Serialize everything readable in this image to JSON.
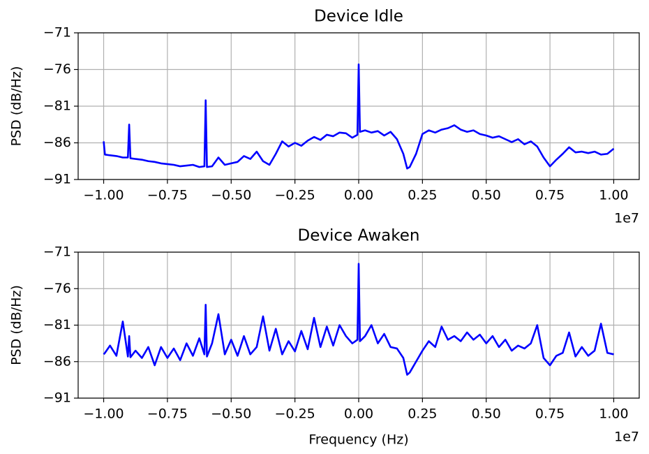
{
  "chart_data": [
    {
      "type": "line",
      "title": "Device Idle",
      "ylabel": "PSD (dB/Hz)",
      "x_offset_label": "1e7",
      "x": [
        -1.0,
        -0.995,
        -0.975,
        -0.95,
        -0.925,
        -0.905,
        -0.9,
        -0.895,
        -0.875,
        -0.85,
        -0.825,
        -0.8,
        -0.775,
        -0.75,
        -0.725,
        -0.7,
        -0.675,
        -0.65,
        -0.625,
        -0.605,
        -0.6,
        -0.595,
        -0.575,
        -0.55,
        -0.525,
        -0.5,
        -0.475,
        -0.45,
        -0.425,
        -0.4,
        -0.375,
        -0.35,
        -0.325,
        -0.3,
        -0.275,
        -0.25,
        -0.225,
        -0.2,
        -0.175,
        -0.15,
        -0.125,
        -0.1,
        -0.075,
        -0.05,
        -0.025,
        -0.005,
        0.0,
        0.005,
        0.025,
        0.05,
        0.075,
        0.1,
        0.125,
        0.15,
        0.175,
        0.19,
        0.2,
        0.225,
        0.25,
        0.275,
        0.3,
        0.325,
        0.35,
        0.375,
        0.4,
        0.425,
        0.45,
        0.475,
        0.5,
        0.525,
        0.55,
        0.575,
        0.6,
        0.625,
        0.65,
        0.675,
        0.7,
        0.725,
        0.75,
        0.775,
        0.8,
        0.825,
        0.85,
        0.875,
        0.9,
        0.925,
        0.95,
        0.975,
        1.0
      ],
      "series": [
        {
          "color": "#0000ff",
          "values": [
            -85.8,
            -87.6,
            -87.7,
            -87.8,
            -88.0,
            -88.0,
            -83.5,
            -88.1,
            -88.2,
            -88.3,
            -88.5,
            -88.6,
            -88.8,
            -88.9,
            -89.0,
            -89.2,
            -89.1,
            -89.0,
            -89.3,
            -89.2,
            -80.2,
            -89.3,
            -89.2,
            -88.0,
            -89.0,
            -88.8,
            -88.6,
            -87.8,
            -88.2,
            -87.2,
            -88.5,
            -89.0,
            -87.5,
            -85.8,
            -86.5,
            -86.0,
            -86.4,
            -85.7,
            -85.2,
            -85.6,
            -84.9,
            -85.1,
            -84.6,
            -84.7,
            -85.3,
            -84.9,
            -75.3,
            -84.5,
            -84.3,
            -84.6,
            -84.4,
            -85.0,
            -84.5,
            -85.5,
            -87.5,
            -89.5,
            -89.3,
            -87.5,
            -84.8,
            -84.3,
            -84.6,
            -84.2,
            -84.0,
            -83.6,
            -84.2,
            -84.5,
            -84.3,
            -84.8,
            -85.0,
            -85.3,
            -85.1,
            -85.5,
            -85.9,
            -85.5,
            -86.2,
            -85.8,
            -86.5,
            -88.0,
            -89.2,
            -88.3,
            -87.5,
            -86.6,
            -87.3,
            -87.2,
            -87.4,
            -87.2,
            -87.6,
            -87.5,
            -86.8
          ]
        }
      ],
      "xlim": [
        -1.1,
        1.1
      ],
      "ylim": [
        -91,
        -71
      ],
      "xticks": [
        {
          "value": -1.0,
          "label": "−1.00"
        },
        {
          "value": -0.75,
          "label": "−0.75"
        },
        {
          "value": -0.5,
          "label": "−0.50"
        },
        {
          "value": -0.25,
          "label": "−0.25"
        },
        {
          "value": 0,
          "label": "0.00"
        },
        0.25,
        {
          "value": 0.5,
          "label": "0.50"
        },
        0.75,
        {
          "value": 1.0,
          "label": "1.00"
        }
      ],
      "yticks": [
        {
          "value": -71,
          "label": "−71"
        },
        {
          "value": -76,
          "label": "−76"
        },
        {
          "value": -81,
          "label": "−81"
        },
        {
          "value": -86,
          "label": "−86"
        },
        {
          "value": -91,
          "label": "−91"
        }
      ],
      "grid": true
    },
    {
      "type": "line",
      "title": "Device Awaken",
      "xlabel": "Frequency (Hz)",
      "ylabel": "PSD (dB/Hz)",
      "x_offset_label": "1e7",
      "x": [
        -1.0,
        -0.995,
        -0.975,
        -0.95,
        -0.925,
        -0.905,
        -0.9,
        -0.895,
        -0.875,
        -0.85,
        -0.825,
        -0.8,
        -0.775,
        -0.75,
        -0.725,
        -0.7,
        -0.675,
        -0.65,
        -0.625,
        -0.605,
        -0.6,
        -0.595,
        -0.575,
        -0.55,
        -0.525,
        -0.5,
        -0.475,
        -0.45,
        -0.425,
        -0.4,
        -0.375,
        -0.35,
        -0.325,
        -0.3,
        -0.275,
        -0.25,
        -0.225,
        -0.2,
        -0.175,
        -0.15,
        -0.125,
        -0.1,
        -0.075,
        -0.05,
        -0.025,
        -0.005,
        0.0,
        0.005,
        0.025,
        0.05,
        0.075,
        0.1,
        0.125,
        0.15,
        0.175,
        0.19,
        0.2,
        0.225,
        0.25,
        0.275,
        0.3,
        0.325,
        0.35,
        0.375,
        0.4,
        0.425,
        0.45,
        0.475,
        0.5,
        0.525,
        0.55,
        0.575,
        0.6,
        0.625,
        0.65,
        0.675,
        0.7,
        0.725,
        0.75,
        0.775,
        0.8,
        0.825,
        0.85,
        0.875,
        0.9,
        0.925,
        0.95,
        0.975,
        1.0
      ],
      "series": [
        {
          "color": "#0000ff",
          "values": [
            -85.0,
            -84.8,
            -83.8,
            -85.2,
            -80.5,
            -85.3,
            -82.5,
            -85.4,
            -84.5,
            -85.5,
            -84.0,
            -86.5,
            -84.0,
            -85.5,
            -84.2,
            -85.8,
            -83.5,
            -85.2,
            -82.8,
            -85.0,
            -78.2,
            -85.3,
            -83.5,
            -79.5,
            -85.0,
            -83.0,
            -85.2,
            -82.5,
            -85.0,
            -84.0,
            -79.8,
            -84.5,
            -81.5,
            -85.0,
            -83.2,
            -84.6,
            -81.8,
            -84.3,
            -80.0,
            -84.0,
            -81.2,
            -83.8,
            -81.0,
            -82.5,
            -83.5,
            -83.0,
            -72.6,
            -83.2,
            -82.5,
            -81.0,
            -83.5,
            -82.2,
            -84.0,
            -84.2,
            -85.5,
            -87.8,
            -87.5,
            -86.0,
            -84.5,
            -83.2,
            -84.0,
            -81.2,
            -83.0,
            -82.5,
            -83.2,
            -82.0,
            -83.0,
            -82.3,
            -83.5,
            -82.5,
            -84.0,
            -83.0,
            -84.5,
            -83.8,
            -84.2,
            -83.5,
            -81.0,
            -85.5,
            -86.5,
            -85.2,
            -84.8,
            -82.0,
            -85.3,
            -84.0,
            -85.2,
            -84.5,
            -80.8,
            -84.8,
            -85.0
          ]
        }
      ],
      "xlim": [
        -1.1,
        1.1
      ],
      "ylim": [
        -91,
        -71
      ],
      "xticks": [
        {
          "value": -1.0,
          "label": "−1.00"
        },
        {
          "value": -0.75,
          "label": "−0.75"
        },
        {
          "value": -0.5,
          "label": "−0.50"
        },
        {
          "value": -0.25,
          "label": "−0.25"
        },
        {
          "value": 0,
          "label": "0.00"
        },
        0.25,
        {
          "value": 0.5,
          "label": "0.50"
        },
        0.75,
        {
          "value": 1.0,
          "label": "1.00"
        }
      ],
      "yticks": [
        {
          "value": -71,
          "label": "−71"
        },
        {
          "value": -76,
          "label": "−76"
        },
        {
          "value": -81,
          "label": "−81"
        },
        {
          "value": -86,
          "label": "−86"
        },
        {
          "value": -91,
          "label": "−91"
        }
      ],
      "grid": true
    }
  ]
}
